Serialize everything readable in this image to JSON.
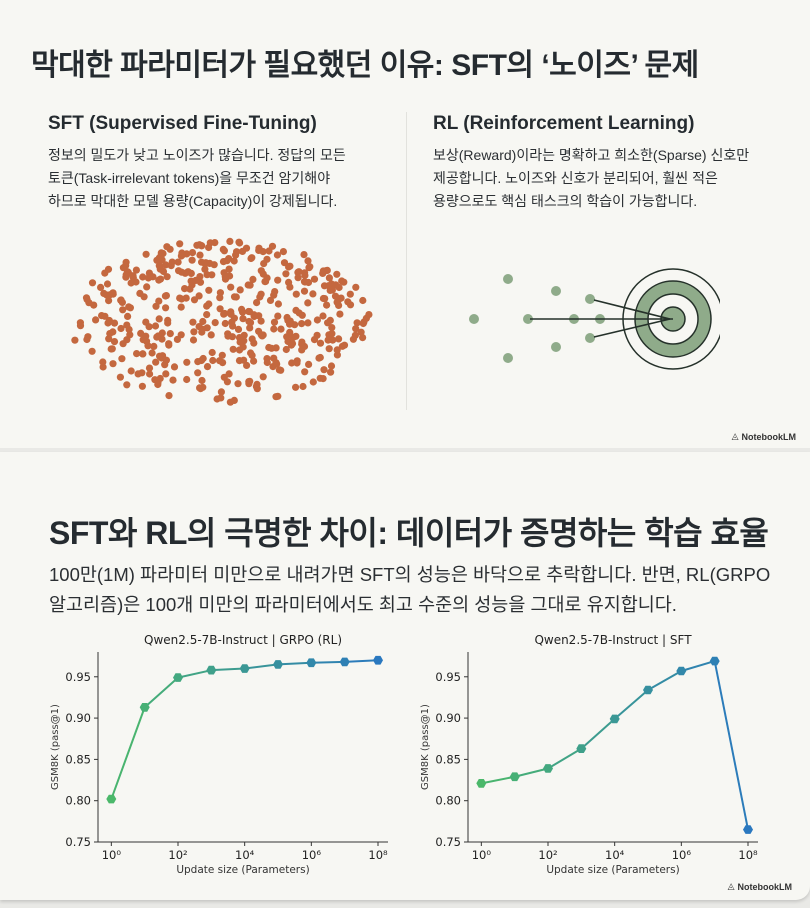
{
  "slide1": {
    "title": "막대한 파라미터가 필요했던 이유: SFT의 ‘노이즈’ 문제",
    "sft": {
      "heading": "SFT (Supervised Fine-Tuning)",
      "lines": [
        "정보의 밀도가 낮고 노이즈가 많습니다. 정답의 모든",
        "토큰(Task-irrelevant tokens)을 무조건 암기해야",
        "하므로 막대한 모델 용량(Capacity)이 강제됩니다."
      ]
    },
    "rl": {
      "heading": "RL (Reinforcement Learning)",
      "lines": [
        "보상(Reward)이라는 명확하고 희소한(Sparse) 신호만",
        "제공합니다. 노이즈와 신호가 분리되어, 훨씬 적은",
        "용량으로도 핵심 태스크의 학습이 가능합니다."
      ]
    },
    "brand": "NotebookLM",
    "colors": {
      "noise": "#c4683f",
      "signal": "#8fab8a",
      "ink": "#25312a"
    }
  },
  "slide2": {
    "title": "SFT와 RL의 극명한 차이: 데이터가 증명하는 학습 효율",
    "lines": [
      "100만(1M) 파라미터 미만으로 내려가면 SFT의 성능은 바닥으로 추락합니다. 반면, RL(GRPO",
      "알고리즘)은 100개 미만의 파라미터에서도 최고 수준의 성능을 그대로 유지합니다."
    ],
    "brand": "NotebookLM"
  },
  "chart_data": [
    {
      "type": "line",
      "title": "Qwen2.5-7B-Instruct | GRPO (RL)",
      "xlabel": "Update size (Parameters)",
      "ylabel": "GSM8K (pass@1)",
      "x_log10": [
        0,
        1,
        2,
        3,
        4,
        5,
        6,
        7,
        8
      ],
      "values": [
        0.802,
        0.913,
        0.949,
        0.958,
        0.96,
        0.965,
        0.967,
        0.968,
        0.97
      ],
      "ylim": [
        0.75,
        0.98
      ],
      "xlim_log10": [
        -0.4,
        8.3
      ],
      "yticks": [
        "0.75",
        "0.80",
        "0.85",
        "0.90",
        "0.95"
      ],
      "xticks": [
        "10⁰",
        "10²",
        "10⁴",
        "10⁶",
        "10⁸"
      ],
      "color_start": "#4bb86a",
      "color_end": "#2a78bf"
    },
    {
      "type": "line",
      "title": "Qwen2.5-7B-Instruct | SFT",
      "xlabel": "Update size (Parameters)",
      "ylabel": "GSM8K (pass@1)",
      "x_log10": [
        0,
        1,
        2,
        3,
        4,
        5,
        6,
        7,
        8
      ],
      "values": [
        0.821,
        0.829,
        0.839,
        0.863,
        0.899,
        0.934,
        0.957,
        0.969,
        0.765
      ],
      "ylim": [
        0.75,
        0.98
      ],
      "xlim_log10": [
        -0.4,
        8.3
      ],
      "yticks": [
        "0.75",
        "0.80",
        "0.85",
        "0.90",
        "0.95"
      ],
      "xticks": [
        "10⁰",
        "10²",
        "10⁴",
        "10⁶",
        "10⁸"
      ],
      "color_start": "#4bb86a",
      "color_end": "#2a78bf"
    }
  ]
}
